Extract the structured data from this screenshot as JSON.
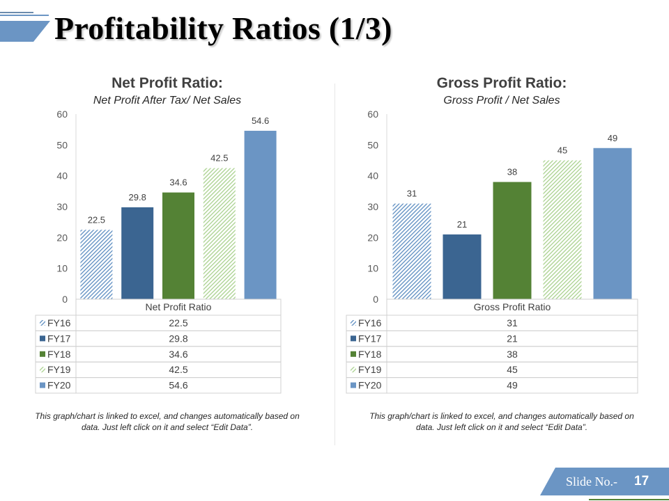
{
  "slide": {
    "title": "Profitability Ratios (1/3)",
    "footer_label": "Slide No.-",
    "footer_number": "17"
  },
  "colors": {
    "accent": "#6b95c4",
    "fy16": "#5b8cc0",
    "fy17": "#3b6591",
    "fy18": "#548235",
    "fy19": "#a9d18e",
    "fy20": "#6b95c4"
  },
  "chart_data": [
    {
      "type": "bar",
      "title": "Net Profit Ratio:",
      "subtitle": "Net Profit After Tax/ Net Sales",
      "xlabel": "Net Profit Ratio",
      "ylabel": "",
      "ylim": [
        0,
        60
      ],
      "yticks": [
        0,
        10,
        20,
        30,
        40,
        50,
        60
      ],
      "categories": [
        "FY16",
        "FY17",
        "FY18",
        "FY19",
        "FY20"
      ],
      "values": [
        22.5,
        29.8,
        34.6,
        42.5,
        54.6
      ],
      "value_labels": [
        "22.5",
        "29.8",
        "34.6",
        "42.5",
        "54.6"
      ],
      "note": "This graph/chart is linked to excel, and changes automatically based on data. Just left click on it and select “Edit Data”."
    },
    {
      "type": "bar",
      "title": "Gross Profit Ratio:",
      "subtitle": "Gross Profit / Net Sales",
      "xlabel": "Gross Profit Ratio",
      "ylabel": "",
      "ylim": [
        0,
        60
      ],
      "yticks": [
        0,
        10,
        20,
        30,
        40,
        50,
        60
      ],
      "categories": [
        "FY16",
        "FY17",
        "FY18",
        "FY19",
        "FY20"
      ],
      "values": [
        31,
        21,
        38,
        45,
        49
      ],
      "value_labels": [
        "31",
        "21",
        "38",
        "45",
        "49"
      ],
      "note": "This graph/chart is linked to excel, and changes automatically based on data. Just left click on it and select “Edit Data”."
    }
  ]
}
